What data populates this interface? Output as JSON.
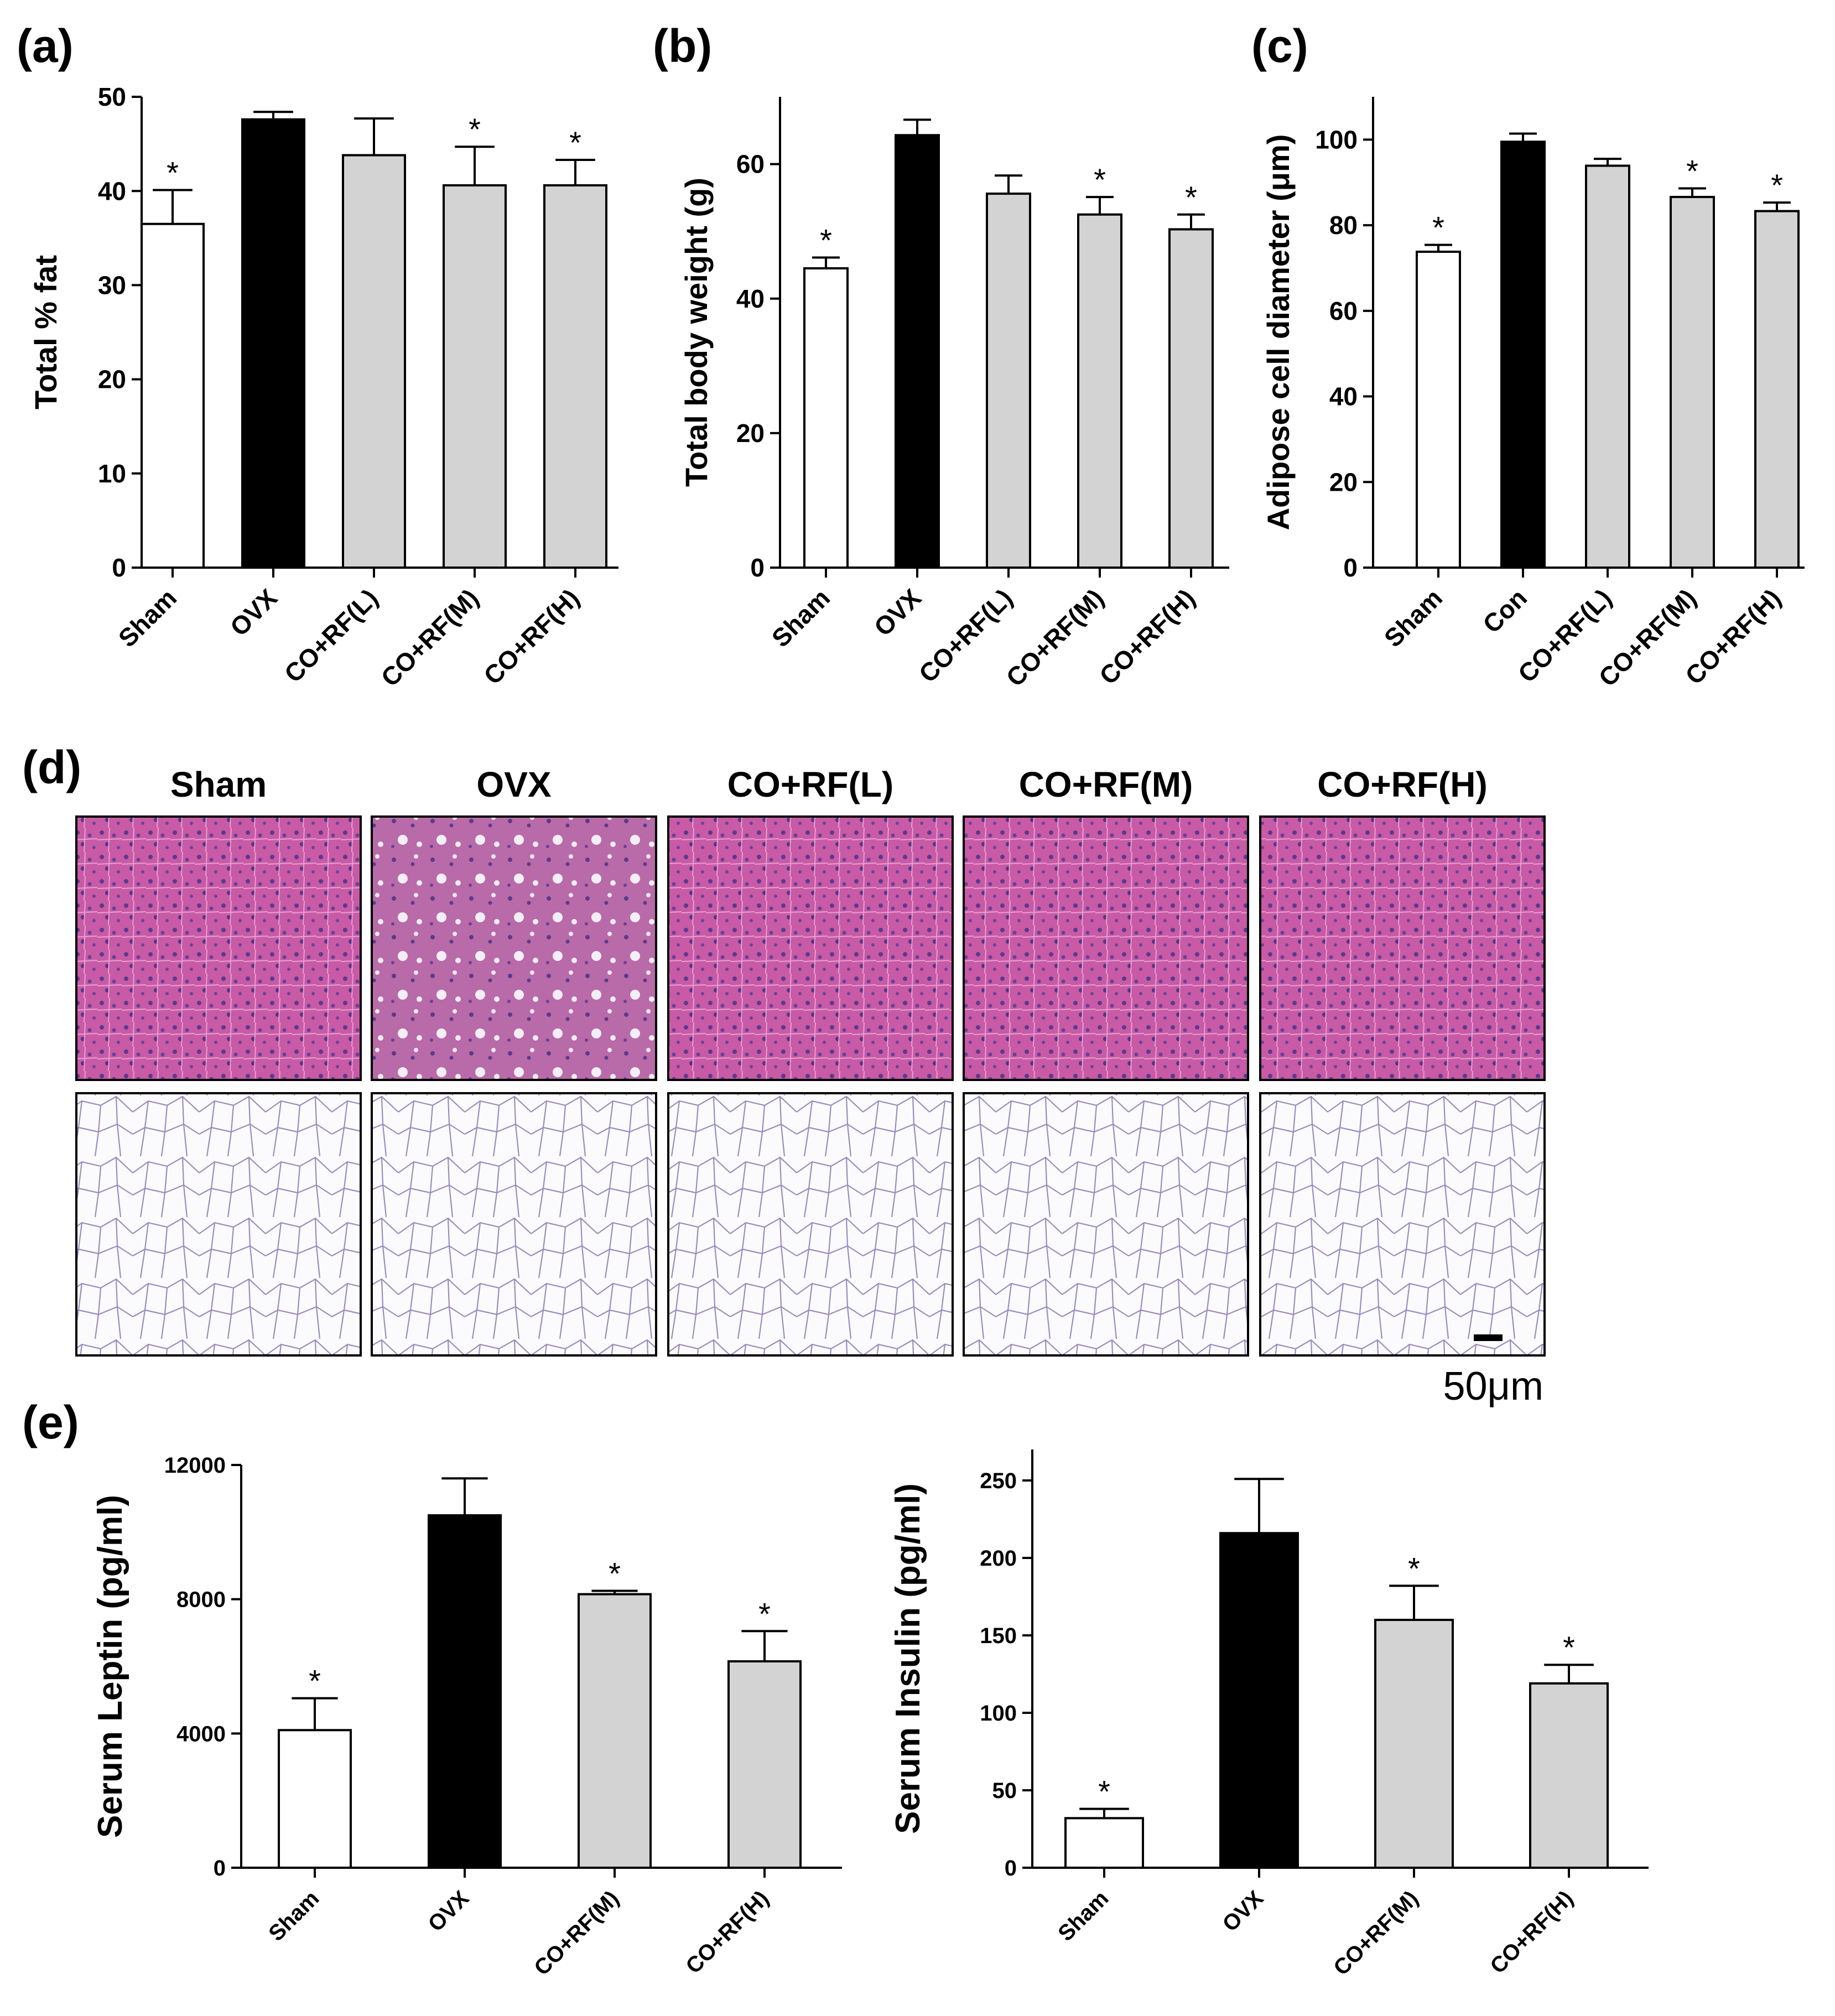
{
  "colors": {
    "white_bar": "#ffffff",
    "black_bar": "#000000",
    "grey_bar": "#d3d3d3",
    "axis": "#000000"
  },
  "star": "*",
  "chart_data": [
    {
      "id": "a",
      "panel_label": "(a)",
      "type": "bar",
      "categories": [
        "Sham",
        "OVX",
        "CO+RF(L)",
        "CO+RF(M)",
        "CO+RF(H)"
      ],
      "values": [
        36.5,
        47.6,
        43.8,
        40.6,
        40.6
      ],
      "errors": [
        3.6,
        0.8,
        3.9,
        4.1,
        2.7
      ],
      "significant": [
        true,
        false,
        false,
        true,
        true
      ],
      "fills": [
        "white",
        "black",
        "grey",
        "grey",
        "grey"
      ],
      "ylabel": "Total % fat",
      "ylim": [
        0,
        50
      ],
      "yticks": [
        0,
        10,
        20,
        30,
        40,
        50
      ]
    },
    {
      "id": "b",
      "panel_label": "(b)",
      "type": "bar",
      "categories": [
        "Sham",
        "OVX",
        "CO+RF(L)",
        "CO+RF(M)",
        "CO+RF(H)"
      ],
      "values": [
        44.5,
        64.3,
        55.6,
        52.5,
        50.3
      ],
      "errors": [
        1.6,
        2.3,
        2.7,
        2.6,
        2.2
      ],
      "significant": [
        true,
        false,
        false,
        true,
        true
      ],
      "fills": [
        "white",
        "black",
        "grey",
        "grey",
        "grey"
      ],
      "ylabel": "Total body weight (g)",
      "ylim": [
        0,
        70
      ],
      "yticks": [
        0,
        20,
        40,
        60
      ]
    },
    {
      "id": "c",
      "panel_label": "(c)",
      "type": "bar",
      "categories": [
        "Sham",
        "Con",
        "CO+RF(L)",
        "CO+RF(M)",
        "CO+RF(H)"
      ],
      "values": [
        73.8,
        99.5,
        93.9,
        86.6,
        83.3
      ],
      "errors": [
        1.6,
        1.9,
        1.6,
        2.0,
        2.0
      ],
      "significant": [
        true,
        false,
        false,
        true,
        true
      ],
      "fills": [
        "white",
        "black",
        "grey",
        "grey",
        "grey"
      ],
      "ylabel": "Adipose cell diameter (μm)",
      "ylim": [
        0,
        110
      ],
      "yticks": [
        0,
        20,
        40,
        60,
        80,
        100
      ]
    },
    {
      "id": "e1",
      "panel_label": "(e)",
      "type": "bar",
      "categories": [
        "Sham",
        "OVX",
        "CO+RF(M)",
        "CO+RF(H)"
      ],
      "values": [
        4100,
        10500,
        8150,
        6150
      ],
      "errors": [
        950,
        1100,
        100,
        900
      ],
      "significant": [
        true,
        false,
        true,
        true
      ],
      "fills": [
        "white",
        "black",
        "grey",
        "grey"
      ],
      "ylabel": "Serum Leptin (pg/ml)",
      "ylim": [
        0,
        12000
      ],
      "yticks": [
        0,
        4000,
        8000,
        12000
      ]
    },
    {
      "id": "e2",
      "panel_label": "",
      "type": "bar",
      "categories": [
        "Sham",
        "OVX",
        "CO+RF(M)",
        "CO+RF(H)"
      ],
      "values": [
        32,
        216,
        160,
        119
      ],
      "errors": [
        6,
        35,
        22,
        12
      ],
      "significant": [
        true,
        false,
        true,
        true
      ],
      "fills": [
        "white",
        "black",
        "grey",
        "grey"
      ],
      "ylabel": "Serum Insulin (pg/ml)",
      "ylim": [
        0,
        270
      ],
      "yticks": [
        0,
        50,
        100,
        150,
        200,
        250
      ]
    }
  ],
  "histology": {
    "panel_label": "(d)",
    "columns": [
      "Sham",
      "OVX",
      "CO+RF(L)",
      "CO+RF(M)",
      "CO+RF(H)"
    ],
    "scale_bar": "50μm"
  }
}
